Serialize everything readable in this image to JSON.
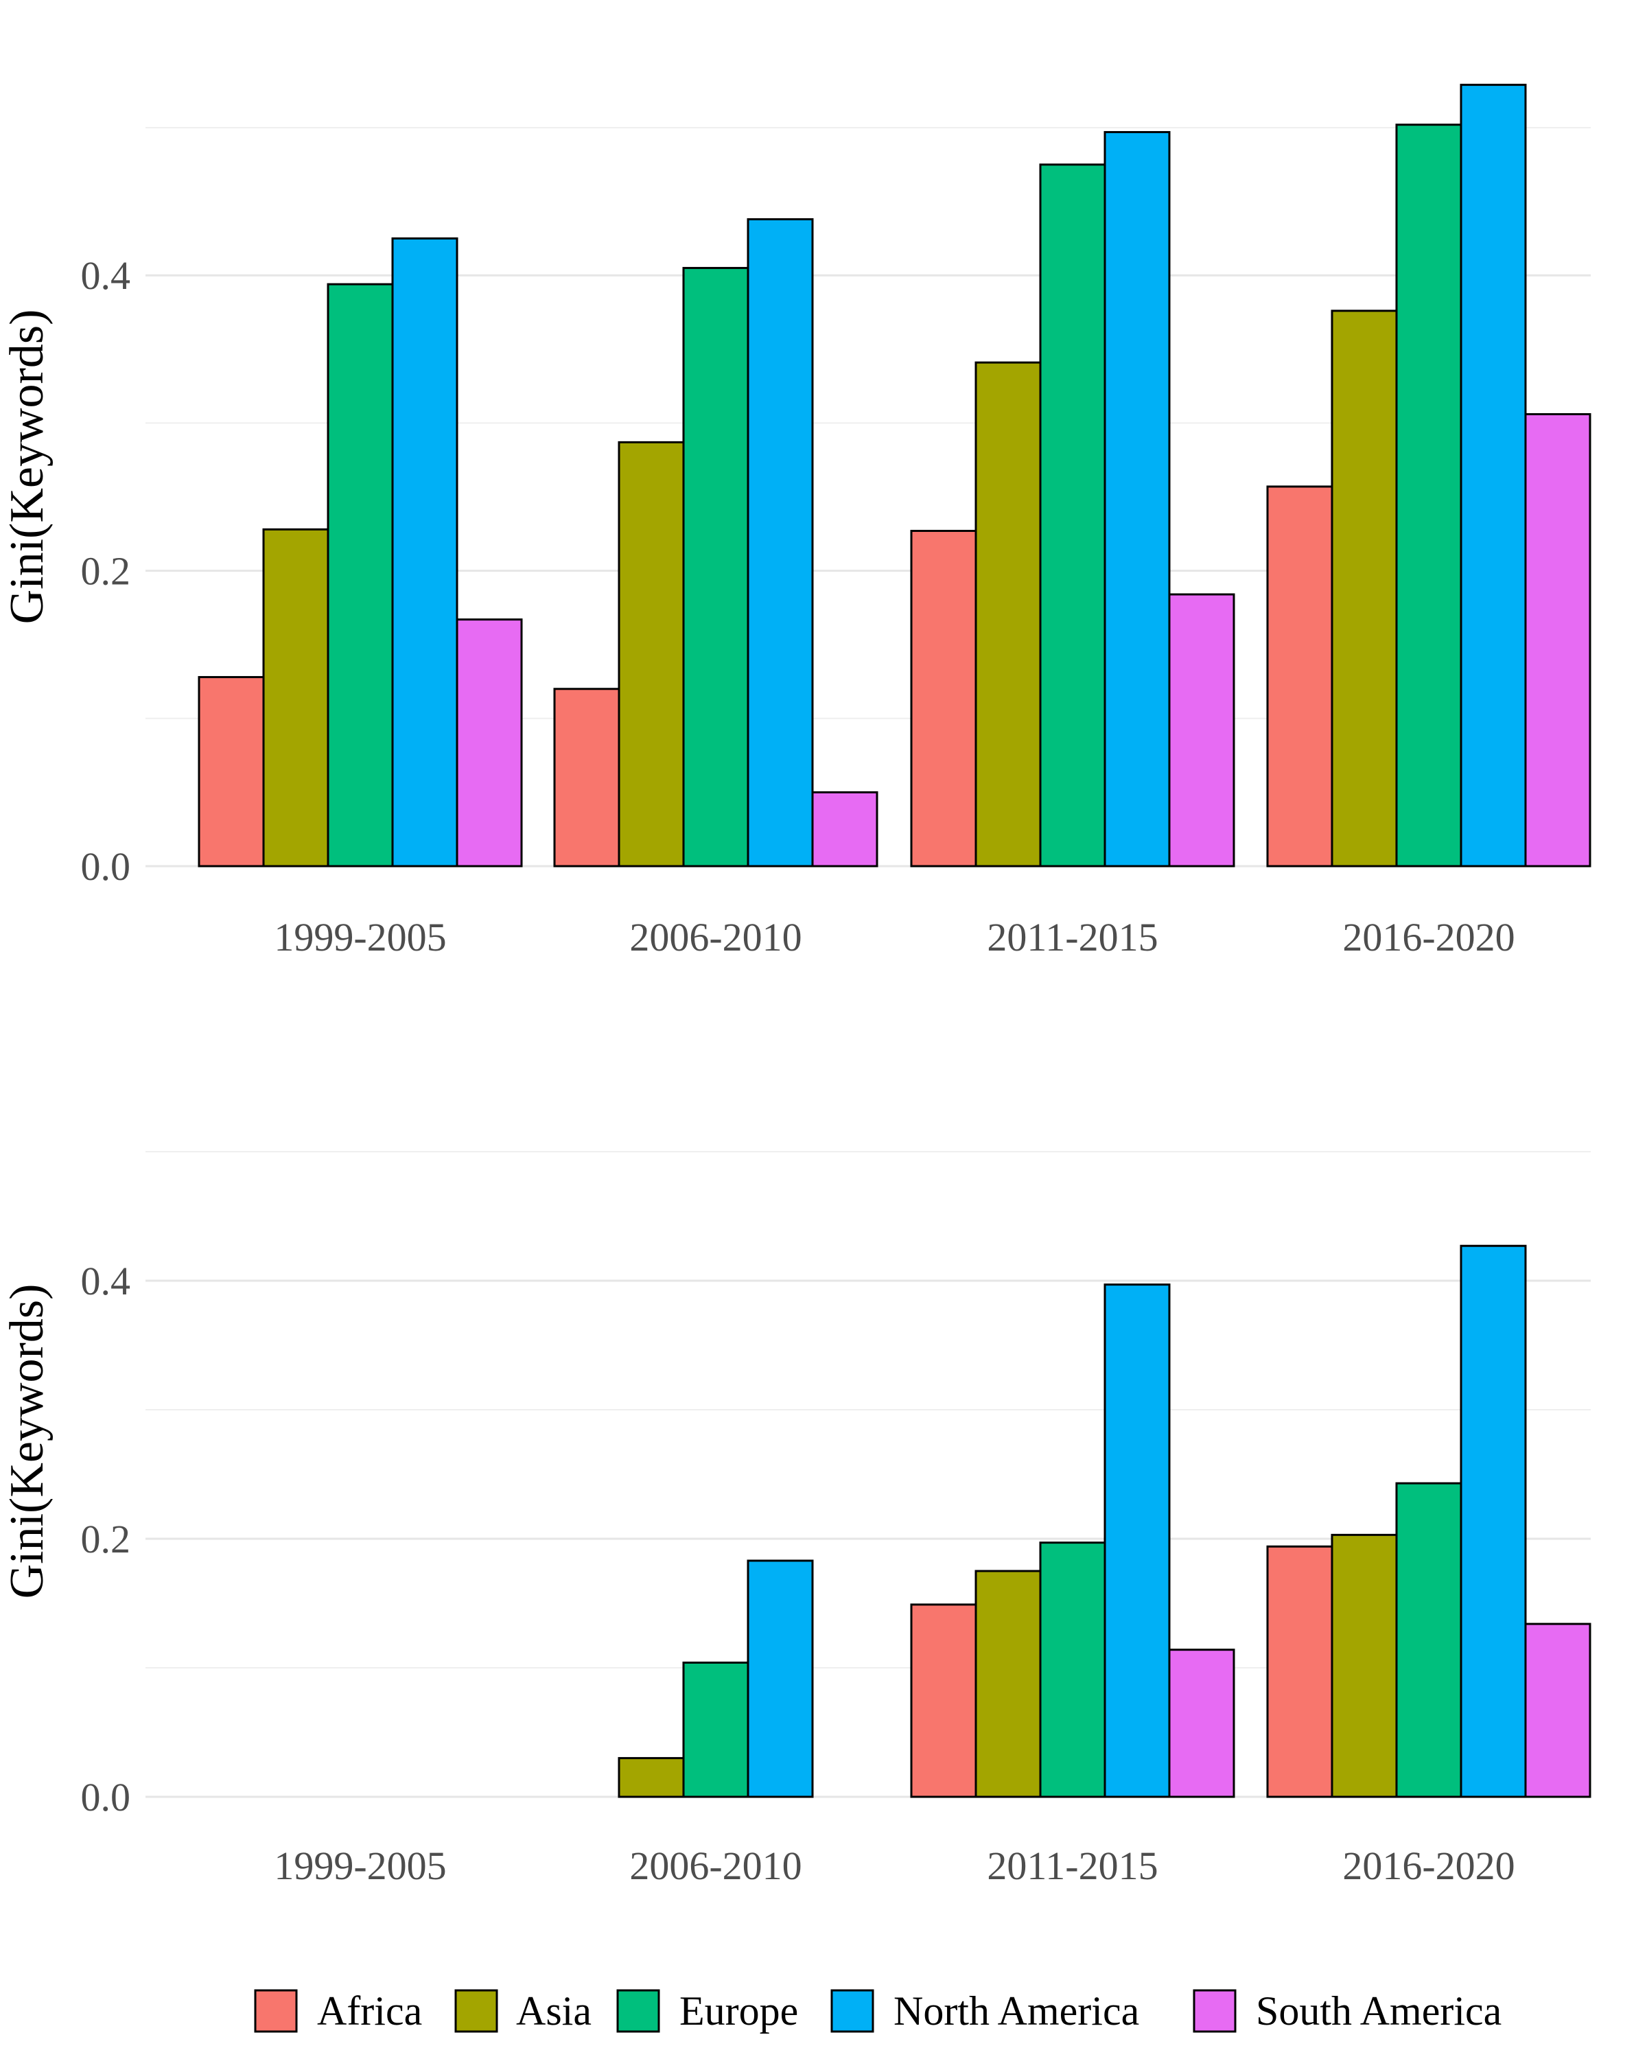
{
  "colors": {
    "Africa": "#F8766D",
    "Asia": "#A3A500",
    "Europe": "#00BF7D",
    "North America": "#00B0F6",
    "South America": "#E76BF3",
    "bar_outline": "#000000"
  },
  "legend": {
    "items": [
      "Africa",
      "Asia",
      "Europe",
      "North America",
      "South America"
    ]
  },
  "chart_data": [
    {
      "type": "bar",
      "title": "",
      "xlabel": "",
      "ylabel": "Gini(Keywords)",
      "categories": [
        "1999-2005",
        "2006-2010",
        "2011-2015",
        "2016-2020"
      ],
      "ylim": [
        0,
        0.5
      ],
      "yticks": [
        0.0,
        0.2,
        0.4
      ],
      "ytick_labels": [
        "0.0",
        "0.2",
        "0.4"
      ],
      "series": [
        {
          "name": "Africa",
          "values": [
            0.128,
            0.12,
            0.227,
            0.257
          ]
        },
        {
          "name": "Asia",
          "values": [
            0.228,
            0.287,
            0.341,
            0.376
          ]
        },
        {
          "name": "Europe",
          "values": [
            0.394,
            0.405,
            0.475,
            0.502
          ]
        },
        {
          "name": "North America",
          "values": [
            0.425,
            0.438,
            0.497,
            0.529
          ]
        },
        {
          "name": "South America",
          "values": [
            0.167,
            0.05,
            0.184,
            0.306
          ]
        }
      ]
    },
    {
      "type": "bar",
      "title": "",
      "xlabel": "",
      "ylabel": "Gini(Keywords)",
      "categories": [
        "1999-2005",
        "2006-2010",
        "2011-2015",
        "2016-2020"
      ],
      "ylim": [
        0,
        0.5
      ],
      "yticks": [
        0.0,
        0.2,
        0.4
      ],
      "ytick_labels": [
        "0.0",
        "0.2",
        "0.4"
      ],
      "series": [
        {
          "name": "Africa",
          "values": [
            0.0,
            0.0,
            0.149,
            0.194
          ]
        },
        {
          "name": "Asia",
          "values": [
            0.0,
            0.03,
            0.175,
            0.203
          ]
        },
        {
          "name": "Europe",
          "values": [
            0.0,
            0.104,
            0.197,
            0.243
          ]
        },
        {
          "name": "North America",
          "values": [
            0.0,
            0.183,
            0.397,
            0.427
          ]
        },
        {
          "name": "South America",
          "values": [
            0.0,
            0.0,
            0.114,
            0.134
          ]
        }
      ]
    }
  ]
}
